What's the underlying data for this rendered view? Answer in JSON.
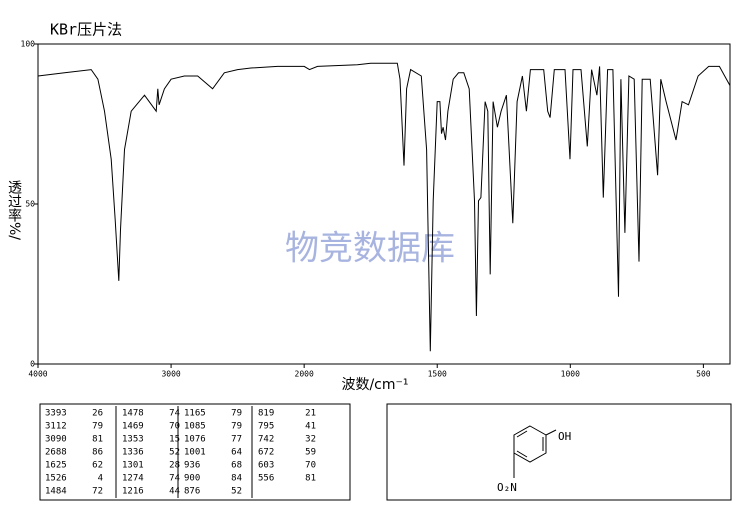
{
  "chart_data": {
    "type": "line",
    "title": "KBr压片法",
    "xlabel": "波数/cm⁻¹",
    "ylabel": "透过率%/",
    "watermark": "物竞数据库",
    "x_break": 2000,
    "x_break_ratio": 2,
    "xlim": [
      4000,
      400
    ],
    "xticks": [
      4000,
      3000,
      2000,
      1500,
      1000,
      500
    ],
    "ylim": [
      0,
      100
    ],
    "yticks": [
      0,
      50,
      100
    ],
    "color": "#000000",
    "x": [
      4000,
      3800,
      3600,
      3550,
      3500,
      3450,
      3420,
      3393,
      3380,
      3350,
      3300,
      3200,
      3112,
      3100,
      3090,
      3050,
      3000,
      2900,
      2800,
      2688,
      2600,
      2500,
      2400,
      2200,
      2000,
      1980,
      1950,
      1800,
      1750,
      1700,
      1650,
      1640,
      1625,
      1615,
      1600,
      1560,
      1540,
      1526,
      1515,
      1500,
      1490,
      1484,
      1478,
      1469,
      1460,
      1440,
      1420,
      1400,
      1380,
      1360,
      1353,
      1345,
      1336,
      1320,
      1310,
      1301,
      1290,
      1274,
      1260,
      1240,
      1216,
      1200,
      1180,
      1165,
      1150,
      1100,
      1085,
      1076,
      1060,
      1020,
      1001,
      990,
      960,
      936,
      920,
      900,
      890,
      876,
      860,
      840,
      819,
      810,
      795,
      780,
      760,
      742,
      730,
      700,
      672,
      660,
      640,
      603,
      580,
      556,
      520,
      480,
      440,
      420,
      400
    ],
    "values": [
      90,
      91,
      92,
      89,
      79,
      64,
      45,
      26,
      42,
      67,
      79,
      84,
      79,
      86,
      81,
      86,
      89,
      90,
      90,
      86,
      91,
      92,
      92.5,
      93,
      93,
      92,
      93,
      93.5,
      94,
      94,
      94,
      89,
      62,
      86,
      92,
      90,
      67,
      4,
      51,
      82,
      82,
      72,
      74,
      70,
      79,
      89,
      91,
      91,
      86,
      51,
      15,
      51,
      52,
      82,
      79,
      28,
      82,
      74,
      79,
      84,
      44,
      82,
      90,
      79,
      92,
      92,
      79,
      77,
      92,
      92,
      64,
      92,
      92,
      68,
      92,
      84,
      93,
      52,
      92,
      92,
      21,
      89,
      41,
      90,
      89,
      32,
      89,
      89,
      59,
      89,
      82,
      70,
      82,
      81,
      90,
      93,
      93,
      90,
      87
    ]
  },
  "peak_table": [
    [
      3393,
      26
    ],
    [
      3112,
      79
    ],
    [
      3090,
      81
    ],
    [
      2688,
      86
    ],
    [
      1625,
      62
    ],
    [
      1526,
      4
    ],
    [
      1484,
      72
    ],
    [
      1478,
      74
    ],
    [
      1469,
      70
    ],
    [
      1353,
      15
    ],
    [
      1336,
      52
    ],
    [
      1301,
      28
    ],
    [
      1274,
      74
    ],
    [
      1216,
      44
    ],
    [
      1165,
      79
    ],
    [
      1085,
      79
    ],
    [
      1076,
      77
    ],
    [
      1001,
      64
    ],
    [
      936,
      68
    ],
    [
      900,
      84
    ],
    [
      876,
      52
    ],
    [
      819,
      21
    ],
    [
      795,
      41
    ],
    [
      742,
      32
    ],
    [
      672,
      59
    ],
    [
      603,
      70
    ],
    [
      556,
      81
    ]
  ],
  "structure": {
    "labels": [
      "OH",
      "O₂N"
    ]
  }
}
